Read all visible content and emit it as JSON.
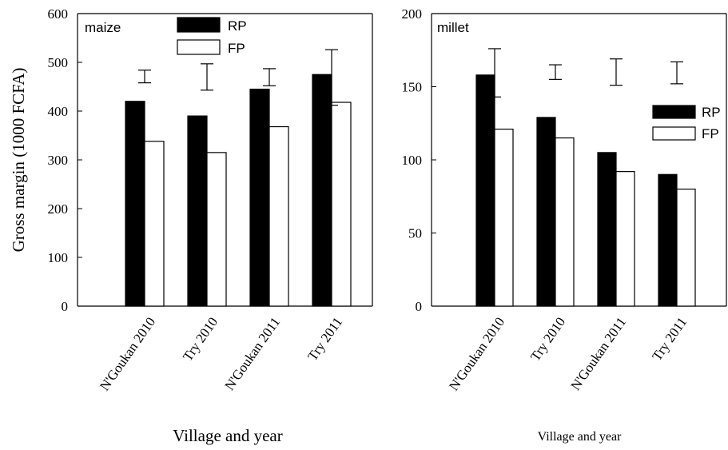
{
  "ylabel": "Gross margin (1000 FCFA)",
  "chart_data": [
    {
      "type": "bar",
      "panel_label": "maize",
      "categories": [
        "N'Goukan 2010",
        "Try 2010",
        "N'Goukan 2011",
        "Try 2011"
      ],
      "series": [
        {
          "name": "RP",
          "values": [
            420,
            390,
            445,
            475
          ],
          "color": "#000000"
        },
        {
          "name": "FP",
          "values": [
            338,
            315,
            368,
            418
          ],
          "color": "#ffffff"
        }
      ],
      "error_bars": [
        {
          "low": 458,
          "high": 484
        },
        {
          "low": 443,
          "high": 497
        },
        {
          "low": 452,
          "high": 487
        },
        {
          "low": 412,
          "high": 526
        }
      ],
      "xlabel": "Village and year",
      "ylim": [
        0,
        600
      ],
      "yticks": [
        0,
        100,
        200,
        300,
        400,
        500,
        600
      ],
      "legend_position": "top-center",
      "grid": false
    },
    {
      "type": "bar",
      "panel_label": "millet",
      "categories": [
        "N'Goukan 2010",
        "Try 2010",
        "N'Goukan 2011",
        "Try 2011"
      ],
      "series": [
        {
          "name": "RP",
          "values": [
            158,
            129,
            105,
            90
          ],
          "color": "#000000"
        },
        {
          "name": "FP",
          "values": [
            121,
            115,
            92,
            80
          ],
          "color": "#ffffff"
        }
      ],
      "error_bars": [
        {
          "low": 143,
          "high": 176
        },
        {
          "low": 155,
          "high": 165
        },
        {
          "low": 151,
          "high": 169
        },
        {
          "low": 152,
          "high": 167
        }
      ],
      "xlabel": "Village and year",
      "ylim": [
        0,
        200
      ],
      "yticks": [
        0,
        50,
        100,
        150,
        200
      ],
      "legend_position": "right",
      "grid": false
    }
  ]
}
